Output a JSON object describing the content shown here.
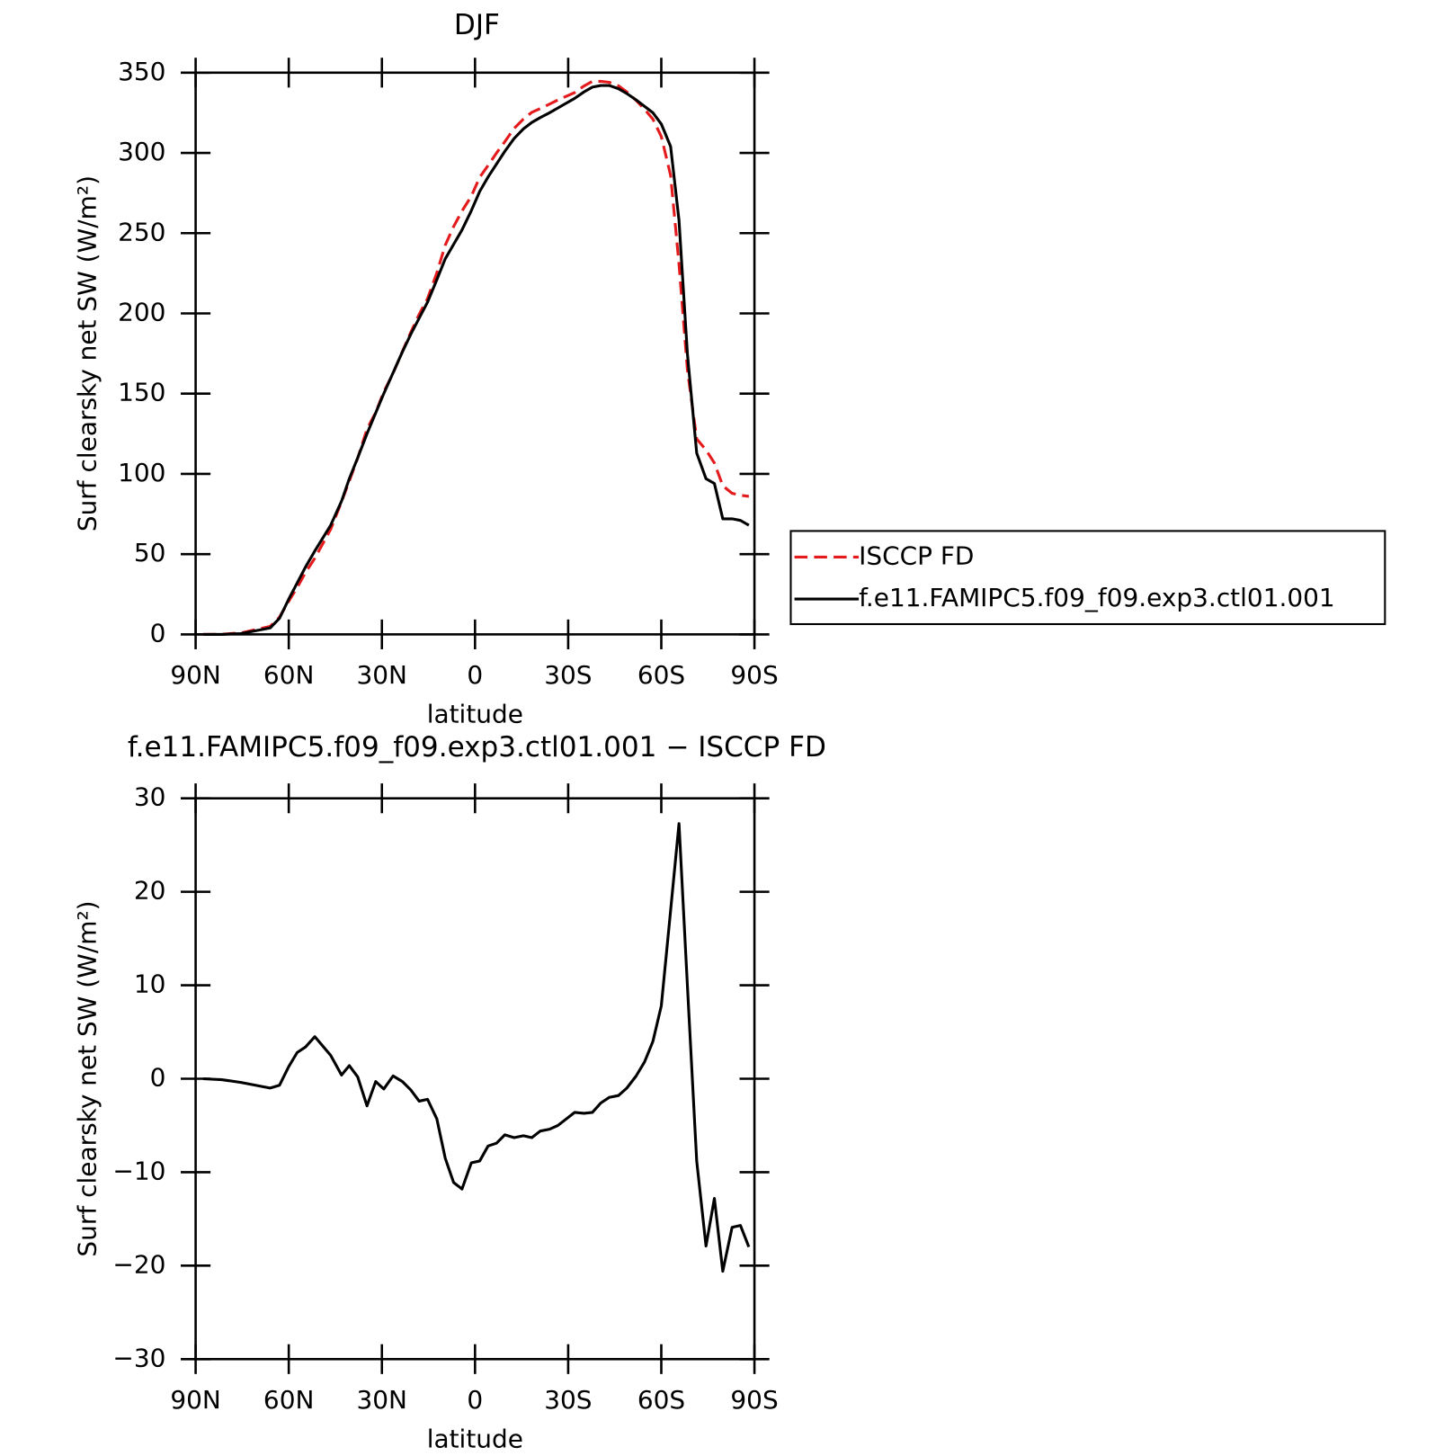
{
  "chart_data": [
    {
      "type": "line",
      "title": "DJF",
      "xlabel": "latitude",
      "ylabel": "Surf clearsky net SW (W/m²)",
      "xlim": [
        90,
        -90
      ],
      "xticks": [
        {
          "value": 90,
          "label": "90N"
        },
        {
          "value": 60,
          "label": "60N"
        },
        {
          "value": 30,
          "label": "30N"
        },
        0,
        {
          "value": -30,
          "label": "30S"
        },
        {
          "value": -60,
          "label": "60S"
        },
        {
          "value": -90,
          "label": "90S"
        }
      ],
      "ylim": [
        0,
        350
      ],
      "yticks": [
        0,
        50,
        100,
        150,
        200,
        250,
        300,
        350
      ],
      "legend": "right",
      "x": [
        87.6,
        81.6,
        75.4,
        66,
        63,
        60,
        57.3,
        54.6,
        51.6,
        46.5,
        43,
        40.5,
        37.8,
        34.8,
        32,
        29.4,
        26.4,
        23.4,
        20.7,
        18,
        15.3,
        12.3,
        9.6,
        6.9,
        4.2,
        1.2,
        -1.5,
        -4.2,
        -6.9,
        -9.6,
        -12.6,
        -15.6,
        -18.3,
        -21,
        -24,
        -26.7,
        -29.4,
        -32.1,
        -35.1,
        -37.8,
        -40.5,
        -43.2,
        -46.2,
        -48.9,
        -51.9,
        -54.6,
        -57.3,
        -60,
        -63,
        -65.7,
        -68.4,
        -71.4,
        -74.4,
        -77.1,
        -79.8,
        -82.8,
        -85.5,
        -88.2
      ],
      "series": [
        {
          "name": "ISCCP FD",
          "color": "#e41a1c",
          "linestyle": "dashed",
          "values": [
            0,
            0.1,
            0.9,
            5,
            10.7,
            20.7,
            29.2,
            38.6,
            47.5,
            65.5,
            82.6,
            95.6,
            109.8,
            127.9,
            138.3,
            151.1,
            162.7,
            176.3,
            188.2,
            199.4,
            209.2,
            225.3,
            242.5,
            254.1,
            263.8,
            273,
            284.8,
            292.2,
            299.9,
            307,
            315.3,
            321.1,
            325.3,
            327.6,
            330.4,
            333,
            335.3,
            337.6,
            341.7,
            344.6,
            344.6,
            344,
            341.8,
            338,
            332.7,
            327.2,
            321,
            310.2,
            286,
            230.7,
            165,
            121.8,
            114.9,
            106.8,
            92.6,
            87.9,
            86.7,
            86
          ]
        },
        {
          "name": "f.e11.FAMIPC5.f09_f09.exp3.ctl01.001",
          "color": "#000000",
          "linestyle": "solid",
          "values": [
            0,
            0,
            0.5,
            4,
            10,
            22,
            32,
            42,
            52,
            68,
            83,
            97,
            110,
            125,
            138,
            150,
            163,
            176,
            187,
            197,
            207,
            221,
            234,
            243,
            252,
            264,
            276,
            285,
            293,
            301,
            309,
            315,
            319,
            322,
            325,
            328,
            331,
            334,
            338,
            341,
            342,
            342,
            340,
            337,
            333,
            329,
            325,
            318,
            304,
            258,
            175,
            113,
            97,
            94,
            72,
            72,
            71,
            68
          ]
        }
      ]
    },
    {
      "type": "line",
      "title": "f.e11.FAMIPC5.f09_f09.exp3.ctl01.001 − ISCCP FD",
      "xlabel": "latitude",
      "ylabel": "Surf clearsky net SW (W/m²)",
      "xlim": [
        90,
        -90
      ],
      "xticks": [
        {
          "value": 90,
          "label": "90N"
        },
        {
          "value": 60,
          "label": "60N"
        },
        {
          "value": 30,
          "label": "30N"
        },
        0,
        {
          "value": -30,
          "label": "30S"
        },
        {
          "value": -60,
          "label": "60S"
        },
        {
          "value": -90,
          "label": "90S"
        }
      ],
      "ylim": [
        -30,
        30
      ],
      "yticks": [
        {
          "value": -30,
          "label": "−30"
        },
        {
          "value": -20,
          "label": "−20"
        },
        {
          "value": -10,
          "label": "−10"
        },
        0,
        10,
        20,
        30
      ],
      "x": [
        87.6,
        81.6,
        75.4,
        66,
        63,
        60,
        57.3,
        54.6,
        51.6,
        46.5,
        43,
        40.5,
        37.8,
        34.8,
        32,
        29.4,
        26.4,
        23.4,
        20.7,
        18,
        15.3,
        12.3,
        9.6,
        6.9,
        4.2,
        1.2,
        -1.5,
        -4.2,
        -6.9,
        -9.6,
        -12.6,
        -15.6,
        -18.3,
        -21,
        -24,
        -26.7,
        -29.4,
        -32.1,
        -35.1,
        -37.8,
        -40.5,
        -43.2,
        -46.2,
        -48.9,
        -51.9,
        -54.6,
        -57.3,
        -60,
        -63,
        -65.7,
        -68.4,
        -71.4,
        -74.4,
        -77.1,
        -79.8,
        -82.8,
        -85.5,
        -88.2
      ],
      "series": [
        {
          "color": "#000000",
          "linestyle": "solid",
          "values": [
            0,
            -0.1,
            -0.4,
            -1,
            -0.7,
            1.3,
            2.8,
            3.4,
            4.5,
            2.5,
            0.4,
            1.4,
            0.2,
            -2.9,
            -0.3,
            -1.1,
            0.3,
            -0.3,
            -1.2,
            -2.4,
            -2.2,
            -4.3,
            -8.5,
            -11.1,
            -11.8,
            -9,
            -8.8,
            -7.2,
            -6.9,
            -6,
            -6.3,
            -6.1,
            -6.3,
            -5.6,
            -5.4,
            -5,
            -4.3,
            -3.6,
            -3.7,
            -3.6,
            -2.6,
            -2,
            -1.8,
            -1,
            0.3,
            1.8,
            4,
            7.8,
            18,
            27.3,
            10,
            -8.8,
            -17.9,
            -12.8,
            -20.6,
            -15.9,
            -15.7,
            -18
          ]
        }
      ]
    }
  ]
}
